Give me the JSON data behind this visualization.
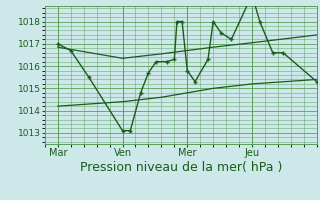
{
  "bg_color": "#cce8e8",
  "grid_color": "#5a9e5a",
  "line_color": "#1a5c1a",
  "xlabel": "Pression niveau de la mer( hPa )",
  "xlabel_fontsize": 9,
  "yticks": [
    1013,
    1014,
    1015,
    1016,
    1017,
    1018
  ],
  "xtick_labels": [
    "Mar",
    "Ven",
    "Mer",
    "Jeu"
  ],
  "xtick_positions": [
    0.5,
    3.0,
    5.5,
    8.0
  ],
  "x_vlines": [
    0.5,
    3.0,
    5.5,
    8.0
  ],
  "ylim": [
    1012.5,
    1018.7
  ],
  "xlim": [
    0.0,
    10.5
  ],
  "main_x": [
    0.5,
    1.0,
    1.7,
    3.0,
    3.3,
    3.7,
    4.0,
    4.3,
    4.7,
    5.0,
    5.1,
    5.3,
    5.5,
    5.8,
    6.3,
    6.5,
    6.8,
    7.2,
    8.0,
    8.3,
    8.8,
    9.2,
    10.5
  ],
  "main_y": [
    1017.0,
    1016.7,
    1015.5,
    1013.1,
    1013.1,
    1014.8,
    1015.7,
    1016.2,
    1016.2,
    1016.3,
    1018.0,
    1018.0,
    1015.8,
    1015.3,
    1016.3,
    1018.0,
    1017.5,
    1017.2,
    1019.2,
    1018.0,
    1016.6,
    1016.6,
    1015.3
  ],
  "upper_x": [
    0.5,
    3.0,
    4.5,
    5.5,
    6.5,
    8.0,
    10.5
  ],
  "upper_y": [
    1016.85,
    1016.35,
    1016.55,
    1016.7,
    1016.85,
    1017.05,
    1017.4
  ],
  "lower_x": [
    0.5,
    3.0,
    4.5,
    5.5,
    6.5,
    8.0,
    10.5
  ],
  "lower_y": [
    1014.2,
    1014.4,
    1014.6,
    1014.8,
    1015.0,
    1015.2,
    1015.4
  ]
}
